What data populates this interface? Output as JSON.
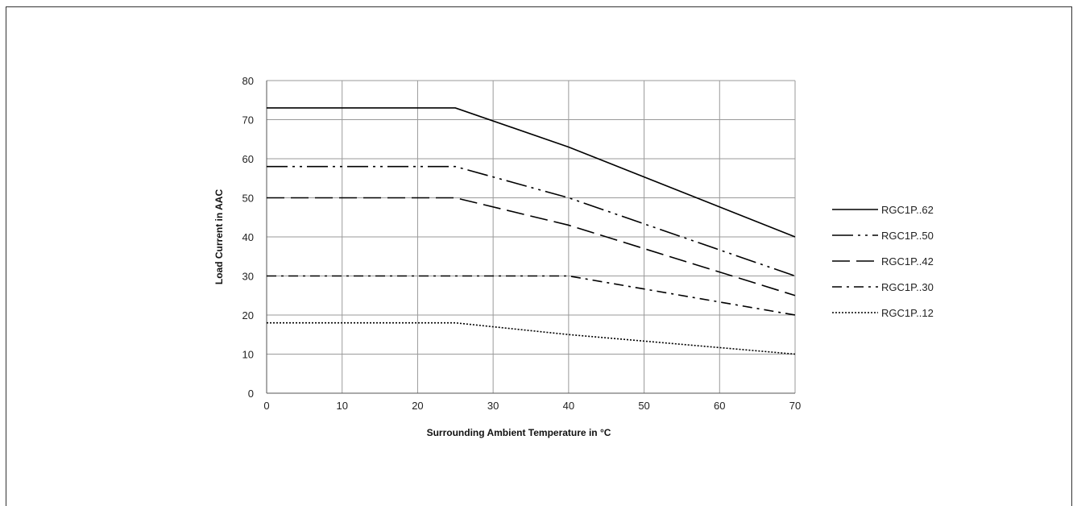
{
  "chart_data": {
    "type": "line",
    "title": "",
    "xlabel": "Surrounding Ambient Temperature in °C",
    "ylabel": "Load Current in AAC",
    "xlim": [
      0,
      70
    ],
    "ylim": [
      0,
      80
    ],
    "xticks": [
      0,
      10,
      20,
      30,
      40,
      50,
      60,
      70
    ],
    "yticks": [
      0,
      10,
      20,
      30,
      40,
      50,
      60,
      70,
      80
    ],
    "grid": true,
    "legend_position": "right",
    "series": [
      {
        "name": "RGC1P..62",
        "style": "solid",
        "x": [
          0,
          25,
          40,
          70
        ],
        "y": [
          73,
          73,
          63,
          40
        ]
      },
      {
        "name": "RGC1P..50",
        "style": "dash-dot-dot",
        "x": [
          0,
          25,
          40,
          70
        ],
        "y": [
          58,
          58,
          50,
          30
        ]
      },
      {
        "name": "RGC1P..42",
        "style": "long-dash",
        "x": [
          0,
          25,
          40,
          70
        ],
        "y": [
          50,
          50,
          43,
          25
        ]
      },
      {
        "name": "RGC1P..30",
        "style": "dash-dot",
        "x": [
          0,
          25,
          40,
          70
        ],
        "y": [
          30,
          30,
          30,
          20
        ]
      },
      {
        "name": "RGC1P..12",
        "style": "dotted",
        "x": [
          0,
          25,
          40,
          70
        ],
        "y": [
          18,
          18,
          15,
          10
        ]
      }
    ],
    "line_color": "#000000",
    "grid_color": "#9a9a9a"
  }
}
